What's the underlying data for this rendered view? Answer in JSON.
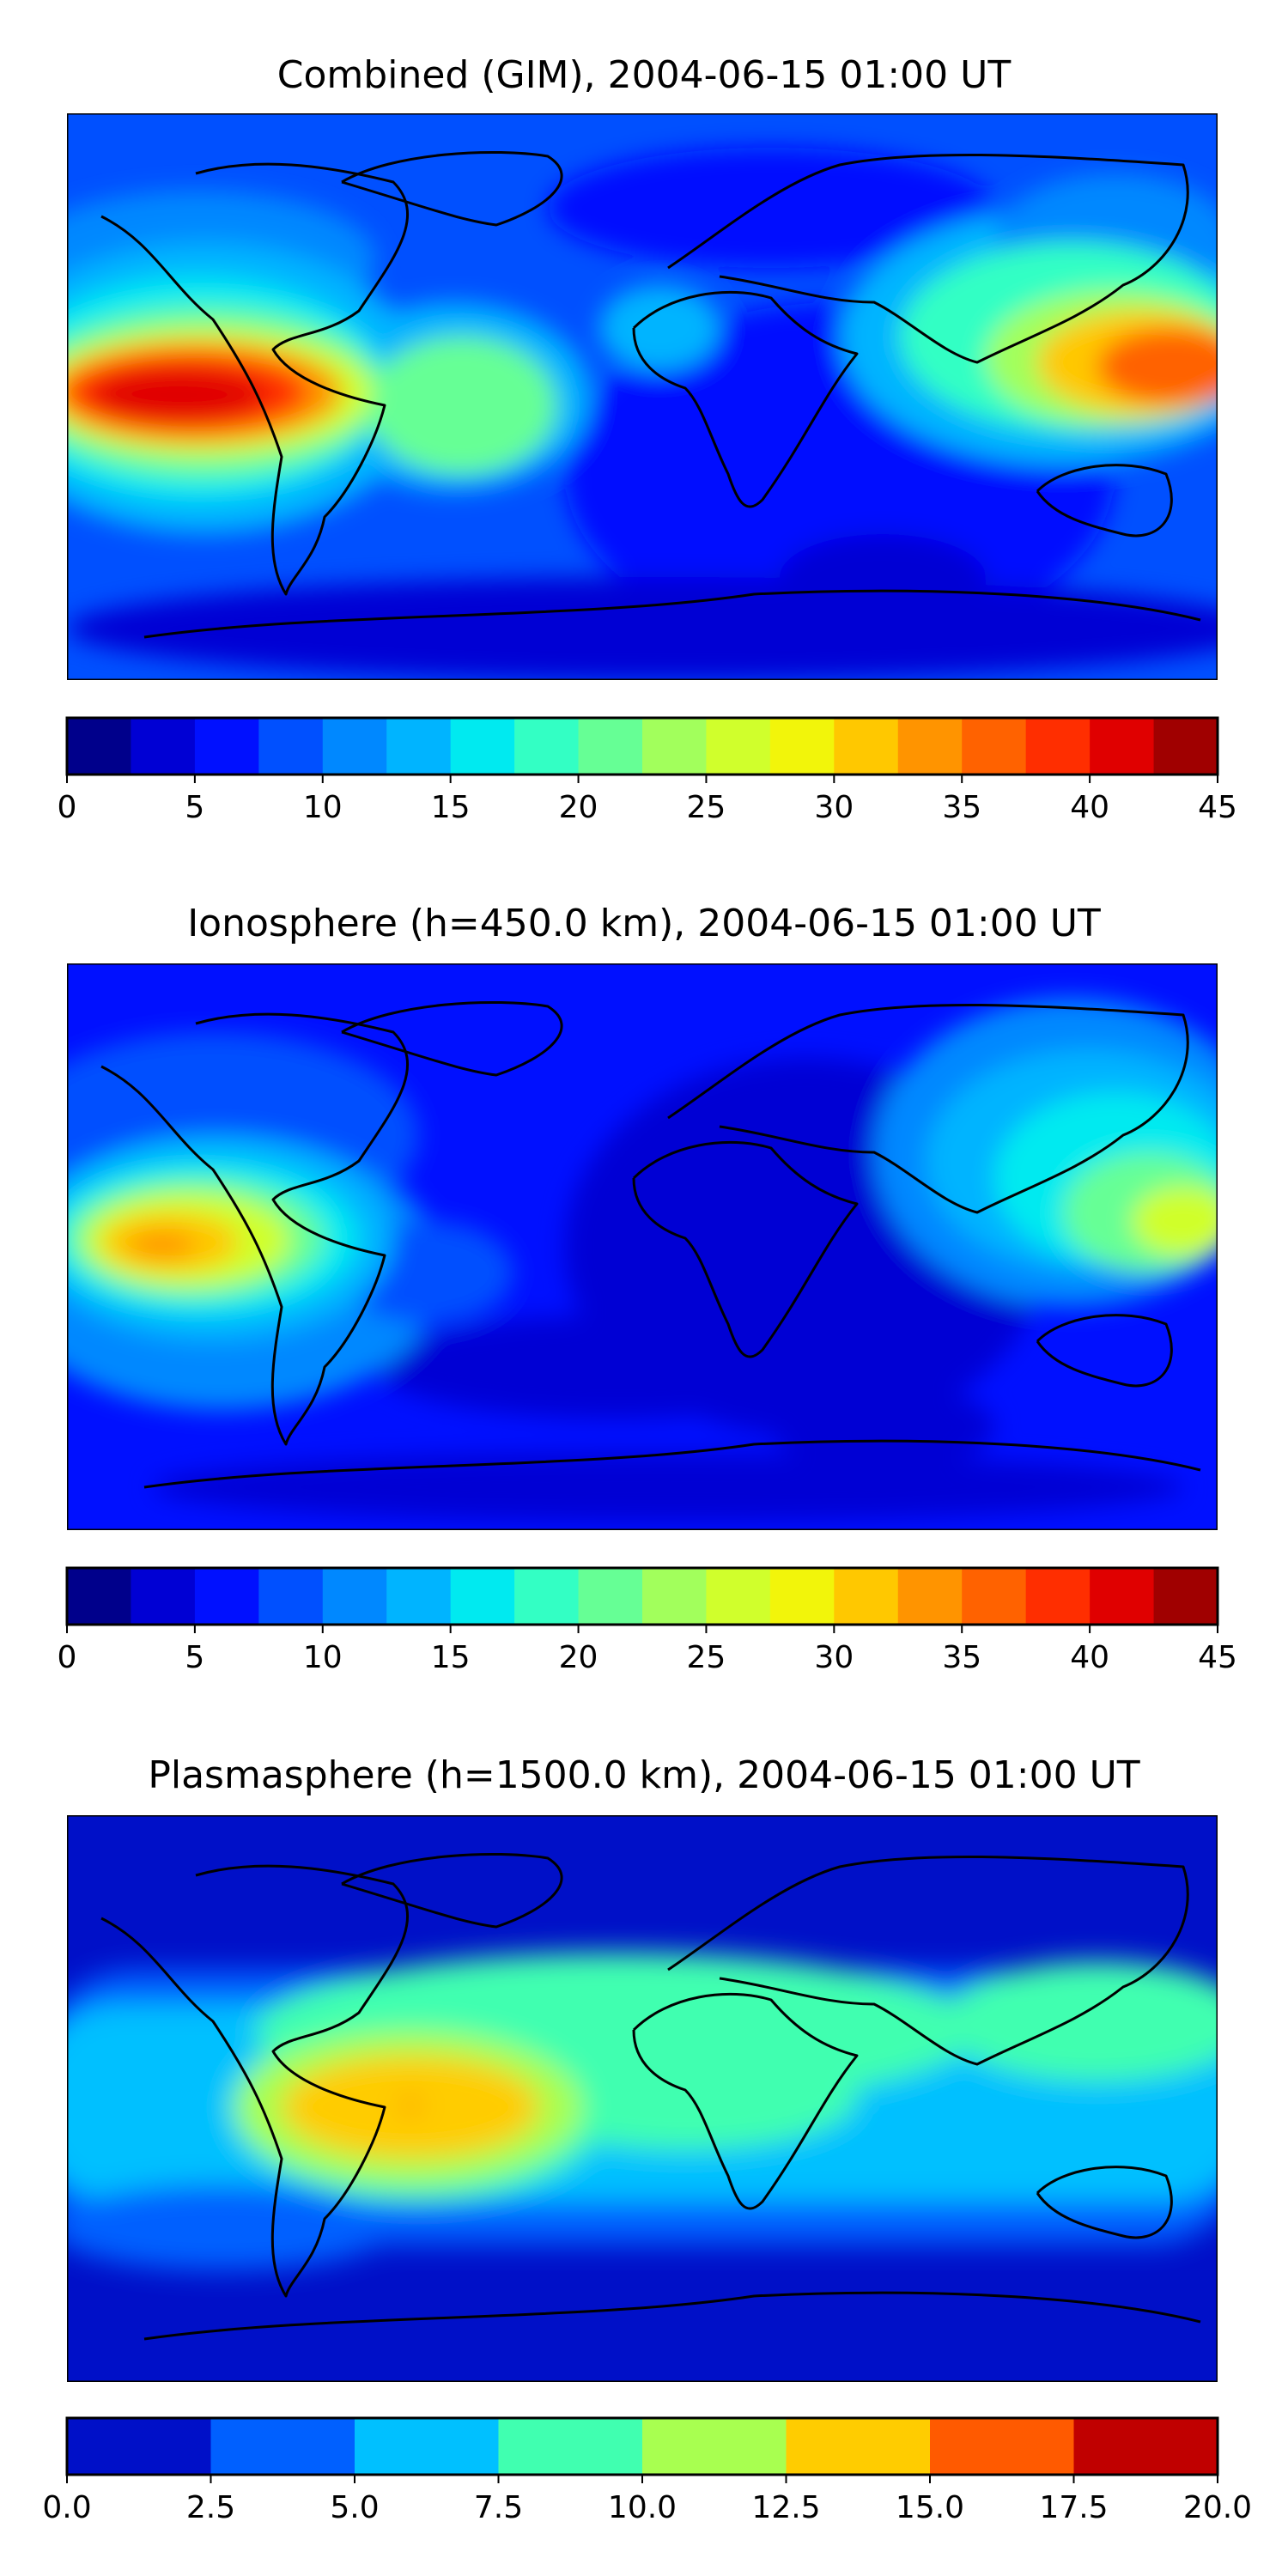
{
  "panels": [
    {
      "title": "Combined (GIM), 2004-06-15 01:00 UT",
      "colorbar": {
        "min": 0,
        "max": 45,
        "colors": [
          "#00008b",
          "#0000d4",
          "#0010ff",
          "#0050ff",
          "#0088ff",
          "#00b4ff",
          "#00eaf0",
          "#33ffc4",
          "#66ff95",
          "#a2ff5c",
          "#d0ff2c",
          "#f2f50a",
          "#ffc800",
          "#ff9400",
          "#ff6200",
          "#ff2e00",
          "#e00000",
          "#a00000"
        ],
        "ticks": [
          "0",
          "5",
          "10",
          "15",
          "20",
          "25",
          "30",
          "35",
          "40",
          "45"
        ]
      }
    },
    {
      "title": "Ionosphere  (h=450.0 km), 2004-06-15 01:00 UT",
      "colorbar": {
        "min": 0,
        "max": 45,
        "colors": [
          "#00008b",
          "#0000d4",
          "#0010ff",
          "#0050ff",
          "#0088ff",
          "#00b4ff",
          "#00eaf0",
          "#33ffc4",
          "#66ff95",
          "#a2ff5c",
          "#d0ff2c",
          "#f2f50a",
          "#ffc800",
          "#ff9400",
          "#ff6200",
          "#ff2e00",
          "#e00000",
          "#a00000"
        ],
        "ticks": [
          "0",
          "5",
          "10",
          "15",
          "20",
          "25",
          "30",
          "35",
          "40",
          "45"
        ]
      }
    },
    {
      "title": "Plasmasphere (h=1500.0 km), 2004-06-15 01:00 UT",
      "colorbar": {
        "min": 0,
        "max": 20,
        "colors": [
          "#0010c8",
          "#0060ff",
          "#00c0ff",
          "#40ffb0",
          "#a8ff50",
          "#ffcc00",
          "#ff5a00",
          "#c00000"
        ],
        "ticks": [
          "0.0",
          "2.5",
          "5.0",
          "7.5",
          "10.0",
          "12.5",
          "15.0",
          "17.5",
          "20.0"
        ]
      }
    }
  ],
  "chart_data": [
    {
      "type": "heatmap",
      "title": "Combined (GIM), 2004-06-15 01:00 UT",
      "colorbar_range": [
        0,
        45
      ],
      "colorbar_ticks": [
        0,
        5,
        10,
        15,
        20,
        25,
        30,
        35,
        40,
        45
      ],
      "levels": 18,
      "hotspots": [
        {
          "region": "central Pacific",
          "value": 42
        },
        {
          "region": "western Pacific / Philippines",
          "value": 37
        },
        {
          "region": "South America (north)",
          "value": 24
        }
      ],
      "background": "Europe, Africa and Indian Ocean mostly 5-10"
    },
    {
      "type": "heatmap",
      "title": "Ionosphere  (h=450.0 km), 2004-06-15 01:00 UT",
      "colorbar_range": [
        0,
        45
      ],
      "colorbar_ticks": [
        0,
        5,
        10,
        15,
        20,
        25,
        30,
        35,
        40,
        45
      ],
      "levels": 18,
      "hotspots": [
        {
          "region": "central Pacific",
          "value": 32
        },
        {
          "region": "western Pacific",
          "value": 30
        },
        {
          "region": "East Asia",
          "value": 18
        }
      ],
      "background": "Atlantic, Africa and Indian Ocean mostly 2-7"
    },
    {
      "type": "heatmap",
      "title": "Plasmasphere (h=1500.0 km), 2004-06-15 01:00 UT",
      "colorbar_range": [
        0,
        20
      ],
      "colorbar_ticks": [
        0.0,
        2.5,
        5.0,
        7.5,
        10.0,
        12.5,
        15.0,
        17.5,
        20.0
      ],
      "levels": 8,
      "hotspots": [
        {
          "region": "South America",
          "value": 14
        },
        {
          "region": "Africa / Indian Ocean band",
          "value": 9
        }
      ],
      "background": "high latitudes below 2.5"
    }
  ]
}
